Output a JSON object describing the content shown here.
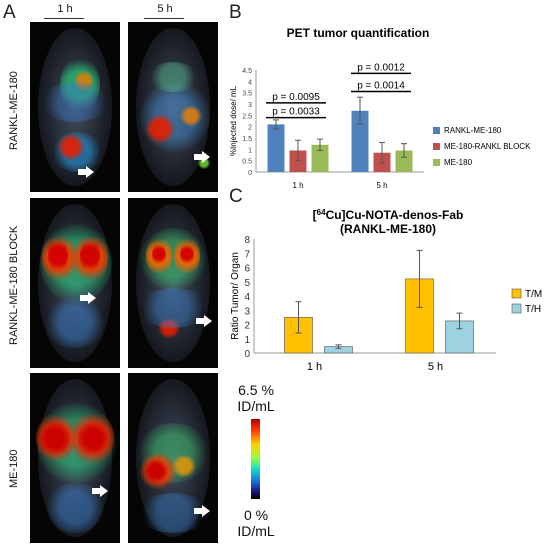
{
  "panels": {
    "a": "A",
    "b": "B",
    "c": "C"
  },
  "images": {
    "columns": [
      "1 h",
      "5 h"
    ],
    "rows": [
      "RANKL-ME-180",
      "RANKL-ME-180 BLOCK",
      "ME-180"
    ]
  },
  "colorbar": {
    "max_line1": "6.5 %",
    "max_line2": "ID/mL",
    "min_line1": "0 %",
    "min_line2": "ID/mL"
  },
  "chart_data": [
    {
      "type": "bar",
      "title": "PET tumor quantification",
      "ylabel": "%Injected dose/ mL",
      "categories": [
        "1 h",
        "5 h"
      ],
      "ylim": [
        0,
        4.5
      ],
      "yticks": [
        "0",
        "0.5",
        "1",
        "1.5",
        "2",
        "2.5",
        "3",
        "3.5",
        "4",
        "4.5"
      ],
      "series": [
        {
          "name": "RANKL-ME-180",
          "color": "#4f81bd",
          "values": [
            2.1,
            2.7
          ],
          "errors": [
            0.2,
            0.6
          ]
        },
        {
          "name": "ME-180-RANKL BLOCK",
          "color": "#c0504d",
          "values": [
            0.95,
            0.85
          ],
          "errors": [
            0.45,
            0.45
          ]
        },
        {
          "name": "ME-180",
          "color": "#9bbb59",
          "values": [
            1.2,
            0.95
          ],
          "errors": [
            0.25,
            0.3
          ]
        }
      ],
      "annotations": [
        "p = 0.0095",
        "p = 0.0033",
        "p = 0.0012",
        "p = 0.0014"
      ],
      "legend": "right"
    },
    {
      "type": "bar",
      "title_line1": "[64Cu]Cu-NOTA-denos-Fab",
      "title_line2": "(RANKL-ME-180)",
      "ylabel": "Ratio Tumor/ Organ",
      "categories": [
        "1 h",
        "5 h"
      ],
      "ylim": [
        0,
        8
      ],
      "yticks": [
        "0",
        "1",
        "2",
        "3",
        "4",
        "5",
        "6",
        "7",
        "8"
      ],
      "series": [
        {
          "name": "T/M",
          "color": "#ffc000",
          "values": [
            2.5,
            5.2
          ],
          "errors": [
            1.1,
            2.0
          ]
        },
        {
          "name": "T/H",
          "color": "#9dd3e0",
          "values": [
            0.45,
            2.25
          ],
          "errors": [
            0.12,
            0.55
          ]
        }
      ],
      "legend": "right"
    }
  ]
}
